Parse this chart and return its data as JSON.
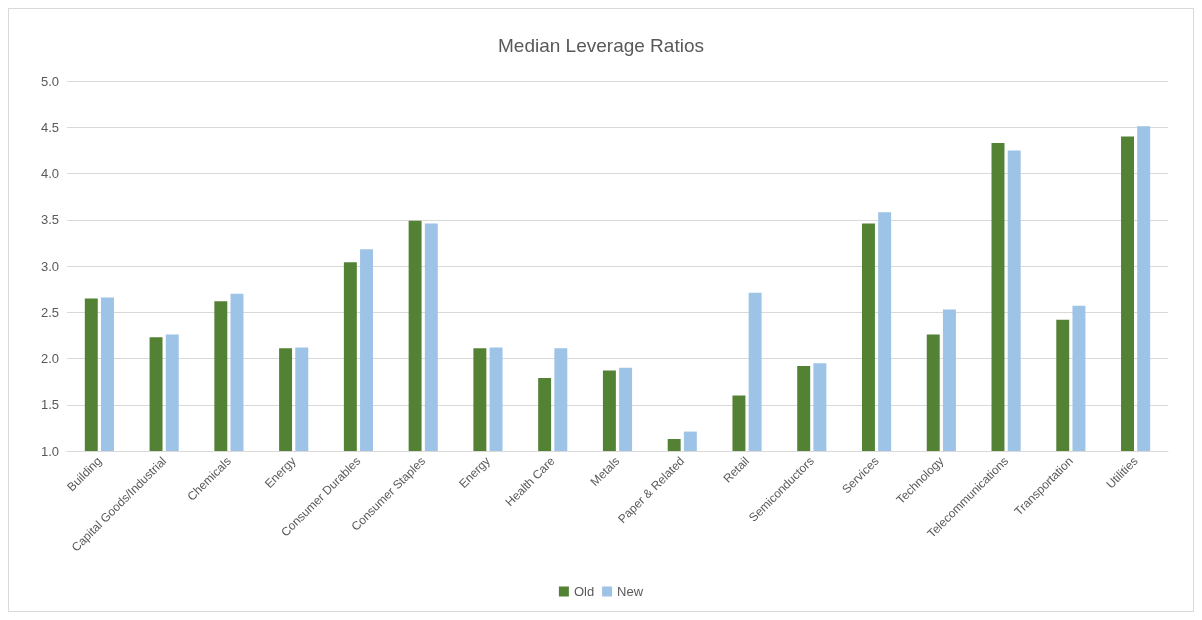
{
  "chart_data": {
    "type": "bar",
    "title": "Median Leverage Ratios",
    "categories": [
      "Building",
      "Capital Goods/Industrial",
      "Chemicals",
      "Energy",
      "Consumer Durables",
      "Consumer Staples",
      "Energy",
      "Health Care",
      "Metals",
      "Paper & Related",
      "Retail",
      "Semiconductors",
      "Services",
      "Technology",
      "Telecommunications",
      "Transportation",
      "Utilities"
    ],
    "series": [
      {
        "name": "Old",
        "color": "#548235",
        "values": [
          2.65,
          2.23,
          2.62,
          2.11,
          3.04,
          3.49,
          2.11,
          1.79,
          1.87,
          1.13,
          1.6,
          1.92,
          3.46,
          2.26,
          4.33,
          2.42,
          4.4
        ]
      },
      {
        "name": "New",
        "color": "#9dc3e6",
        "values": [
          2.66,
          2.26,
          2.7,
          2.12,
          3.18,
          3.46,
          2.12,
          2.11,
          1.9,
          1.21,
          2.71,
          1.95,
          3.58,
          2.53,
          4.25,
          2.57,
          4.51
        ]
      }
    ],
    "ylim": [
      1,
      5
    ],
    "yticks": [
      {
        "value": 1,
        "label": "1.0"
      },
      1.5,
      {
        "value": 2,
        "label": "2.0"
      },
      2.5,
      {
        "value": 3,
        "label": "3.0"
      },
      3.5,
      {
        "value": 4,
        "label": "4.0"
      },
      4.5,
      {
        "value": 5,
        "label": "5.0"
      }
    ],
    "grid": "y",
    "legend": "bottom"
  }
}
